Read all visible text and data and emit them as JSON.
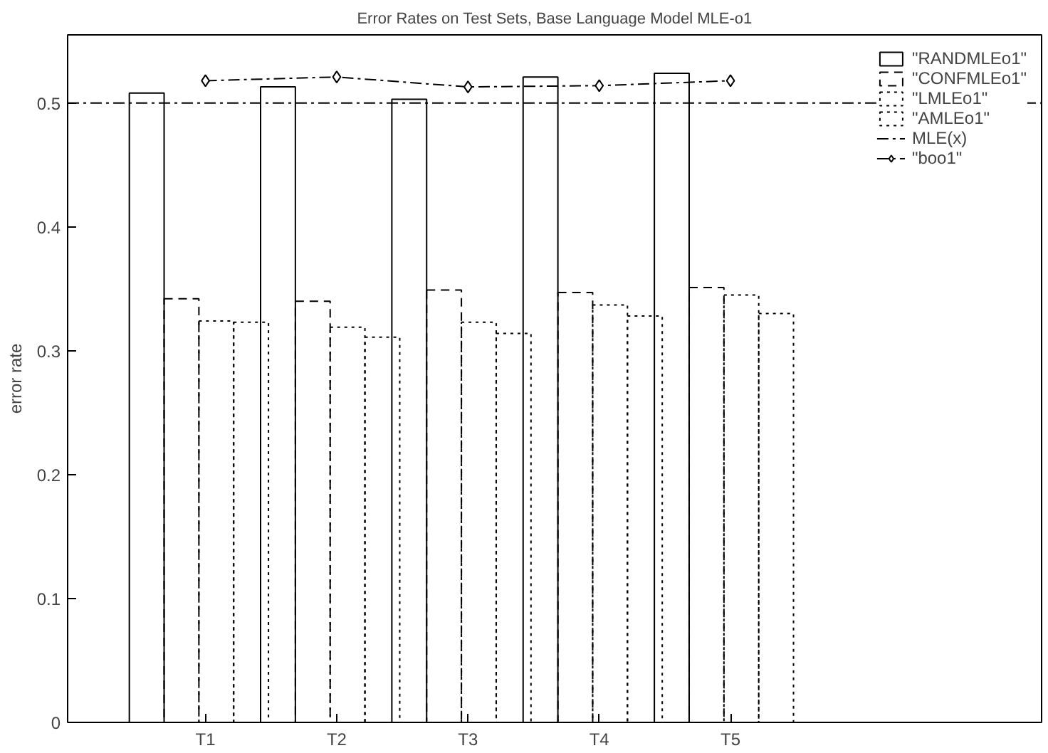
{
  "chart_data": {
    "type": "bar",
    "title": "Error Rates on Test Sets, Base Language Model MLE-o1",
    "ylabel": "error rate",
    "categories": [
      "T1",
      "T2",
      "T3",
      "T4",
      "T5"
    ],
    "series": [
      {
        "name": "\"RANDMLEo1\"",
        "color": "#000000",
        "line_style": "solid",
        "values": [
          0.508,
          0.513,
          0.503,
          0.521,
          0.524
        ]
      },
      {
        "name": "\"CONFMLEo1\"",
        "color": "#000000",
        "line_style": "dashed",
        "values": [
          0.342,
          0.34,
          0.349,
          0.347,
          0.351
        ]
      },
      {
        "name": "\"LMLEo1\"",
        "color": "#000000",
        "line_style": "dotted",
        "values": [
          0.324,
          0.319,
          0.323,
          0.337,
          0.345
        ]
      },
      {
        "name": "\"AMLEo1\"",
        "color": "#000000",
        "line_style": "dotted",
        "values": [
          0.323,
          0.311,
          0.314,
          0.328,
          0.33
        ]
      },
      {
        "name": "\"boo1\"",
        "type": "line",
        "marker": "diamond",
        "line_style": "dashdot",
        "color": "#000000",
        "values": [
          0.518,
          0.521,
          0.513,
          0.514,
          0.518
        ]
      }
    ],
    "ref_lines": [
      {
        "axis": "y",
        "value": 0.5,
        "label": "MLE(x)",
        "color": "#000000",
        "line_style": "dashdot"
      }
    ],
    "ylim": [
      0,
      0.555
    ],
    "yticks": [
      0,
      0.1,
      0.2,
      0.3,
      0.4,
      0.5
    ],
    "grid": false,
    "legend": "top right"
  }
}
